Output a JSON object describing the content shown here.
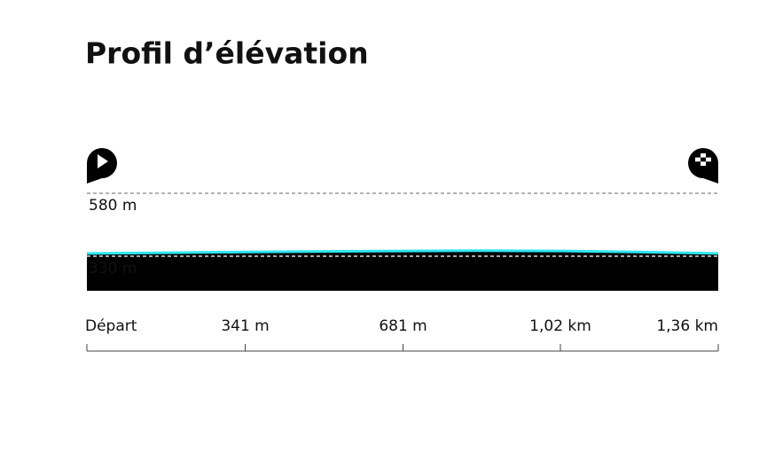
{
  "chart_data": {
    "type": "area",
    "title": "Profil d’élévation",
    "x": [
      0,
      170,
      340,
      510,
      680,
      850,
      1020,
      1190,
      1360
    ],
    "values": [
      341,
      344,
      347,
      349,
      351,
      352,
      351,
      347,
      341
    ],
    "color": "#000000",
    "line_color": "#2ee6f0",
    "xlim": [
      0,
      1360
    ],
    "xticks": [
      {
        "value": 0,
        "label": "Départ"
      },
      {
        "value": 341,
        "label": "341 m"
      },
      {
        "value": 681,
        "label": "681 m"
      },
      {
        "value": 1020,
        "label": "1,02 km"
      },
      {
        "value": 1360,
        "label": "1,36 km"
      }
    ],
    "ylim": [
      193,
      580
    ],
    "yticks": [
      {
        "value": 580,
        "label": "580 m"
      },
      {
        "value": 330,
        "label": "330 m"
      }
    ],
    "grid": true
  }
}
